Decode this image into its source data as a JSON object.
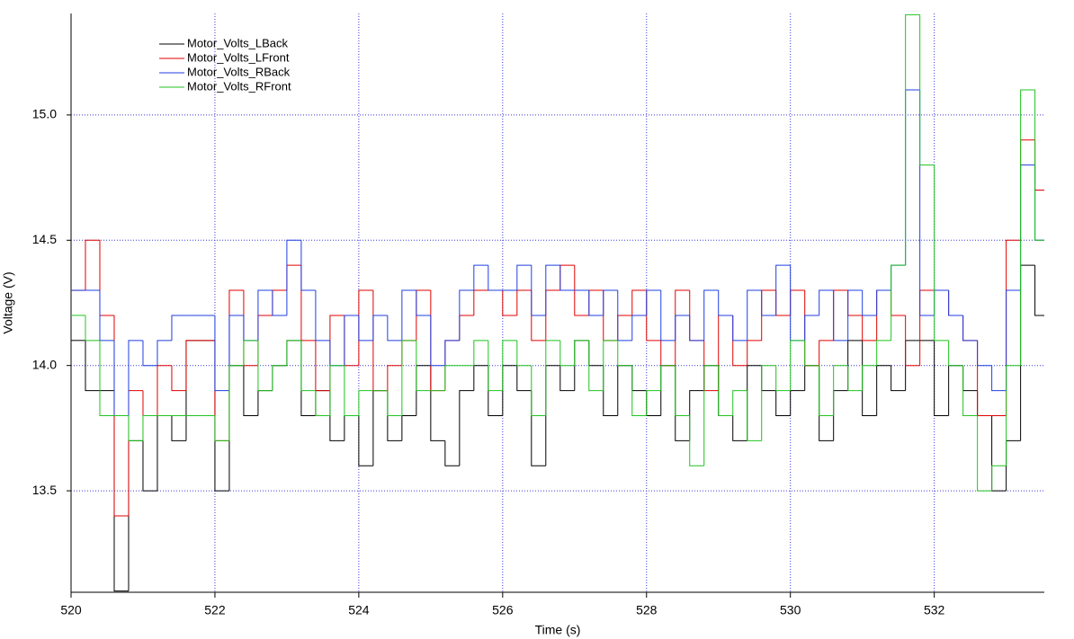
{
  "chart_data": {
    "type": "line",
    "step": "post",
    "xlabel": "Time (s)",
    "ylabel": "Voltage (V)",
    "xlim": [
      520,
      533.53
    ],
    "ylim": [
      13.095,
      15.405
    ],
    "xticks": [
      520,
      522,
      524,
      526,
      528,
      530,
      532
    ],
    "yticks": [
      13.5,
      {
        "value": 14,
        "label": "14.0"
      },
      14.5,
      {
        "value": 15,
        "label": "15.0"
      }
    ],
    "grid": true,
    "legend": "upper-left",
    "x": [
      520,
      520.2,
      520.4,
      520.6,
      520.8,
      521,
      521.2,
      521.4,
      521.6,
      521.8,
      522,
      522.2,
      522.4,
      522.6,
      522.8,
      523,
      523.2,
      523.4,
      523.6,
      523.8,
      524,
      524.2,
      524.4,
      524.6,
      524.8,
      525,
      525.2,
      525.4,
      525.6,
      525.8,
      526,
      526.2,
      526.4,
      526.6,
      526.8,
      527,
      527.2,
      527.4,
      527.6,
      527.8,
      528,
      528.2,
      528.4,
      528.6,
      528.8,
      529,
      529.2,
      529.4,
      529.6,
      529.8,
      530,
      530.2,
      530.4,
      530.6,
      530.8,
      531,
      531.2,
      531.4,
      531.6,
      531.8,
      532,
      532.2,
      532.4,
      532.6,
      532.8,
      533,
      533.2,
      533.4
    ],
    "series": [
      {
        "name": "Motor_Volts_LBack",
        "color": "#000000",
        "values": [
          14.1,
          13.9,
          13.9,
          13.1,
          13.7,
          13.5,
          13.8,
          13.7,
          14.1,
          14.1,
          13.5,
          14.0,
          13.8,
          13.9,
          14.0,
          14.1,
          13.8,
          13.9,
          13.7,
          13.8,
          13.6,
          13.9,
          13.7,
          13.8,
          14.0,
          13.7,
          13.6,
          13.9,
          14.0,
          13.8,
          14.0,
          13.9,
          13.6,
          14.0,
          13.9,
          14.1,
          14.0,
          13.8,
          14.0,
          13.9,
          13.8,
          14.0,
          13.7,
          13.9,
          14.0,
          13.8,
          13.7,
          14.0,
          13.9,
          13.8,
          13.9,
          14.0,
          13.7,
          13.9,
          14.1,
          13.8,
          14.0,
          13.9,
          14.1,
          14.1,
          13.8,
          14.0,
          13.9,
          13.8,
          13.5,
          13.7,
          14.4,
          14.2
        ]
      },
      {
        "name": "Motor_Volts_LFront",
        "color": "#e00000",
        "values": [
          14.3,
          14.5,
          14.2,
          13.4,
          13.9,
          13.8,
          14.0,
          13.9,
          14.1,
          14.1,
          13.7,
          14.3,
          14.0,
          14.2,
          14.3,
          14.4,
          14.1,
          13.9,
          14.2,
          14.0,
          14.3,
          13.9,
          14.0,
          14.1,
          14.3,
          13.9,
          14.1,
          14.2,
          14.3,
          14.3,
          14.2,
          14.3,
          14.1,
          14.3,
          14.4,
          14.2,
          14.3,
          14.1,
          14.2,
          14.3,
          14.1,
          14.0,
          14.3,
          14.1,
          13.9,
          14.2,
          14.0,
          14.1,
          14.3,
          14.2,
          14.3,
          14.0,
          14.1,
          14.3,
          14.2,
          14.1,
          14.3,
          14.2,
          14.0,
          14.3,
          14.3,
          14.2,
          14.1,
          13.8,
          13.8,
          14.5,
          14.9,
          14.7
        ]
      },
      {
        "name": "Motor_Volts_RBack",
        "color": "#1f3fe0",
        "values": [
          14.3,
          14.3,
          14.1,
          13.8,
          14.1,
          14.0,
          14.1,
          14.2,
          14.2,
          14.2,
          13.9,
          14.2,
          14.1,
          14.3,
          14.2,
          14.5,
          14.3,
          14.1,
          14.0,
          14.2,
          14.1,
          14.2,
          14.1,
          14.3,
          14.2,
          14.0,
          14.1,
          14.3,
          14.4,
          14.3,
          14.3,
          14.4,
          14.2,
          14.4,
          14.3,
          14.3,
          14.2,
          14.3,
          14.1,
          14.2,
          14.3,
          14.1,
          14.2,
          14.1,
          14.3,
          14.2,
          14.1,
          14.3,
          14.2,
          14.4,
          14.1,
          14.2,
          14.3,
          14.1,
          14.3,
          14.2,
          14.3,
          14.4,
          15.1,
          14.2,
          14.3,
          14.2,
          14.1,
          14.0,
          13.9,
          14.3,
          14.8,
          14.5
        ]
      },
      {
        "name": "Motor_Volts_RFront",
        "color": "#1fc41f",
        "values": [
          14.2,
          14.1,
          13.8,
          13.8,
          13.7,
          13.8,
          13.8,
          13.8,
          13.8,
          13.8,
          13.7,
          14.0,
          14.1,
          13.9,
          14.0,
          14.1,
          13.9,
          13.8,
          14.0,
          13.8,
          13.9,
          13.9,
          13.8,
          14.1,
          13.9,
          13.9,
          14.0,
          14.0,
          14.1,
          13.9,
          14.1,
          14.0,
          13.8,
          14.1,
          14.0,
          14.1,
          13.9,
          14.1,
          14.0,
          13.8,
          13.9,
          14.0,
          13.8,
          13.6,
          14.0,
          13.8,
          13.9,
          13.7,
          14.0,
          13.9,
          14.1,
          14.0,
          13.8,
          14.0,
          13.9,
          14.0,
          14.1,
          14.4,
          15.4,
          14.8,
          14.1,
          14.0,
          13.8,
          13.5,
          13.6,
          14.0,
          15.1,
          14.5
        ]
      }
    ]
  }
}
